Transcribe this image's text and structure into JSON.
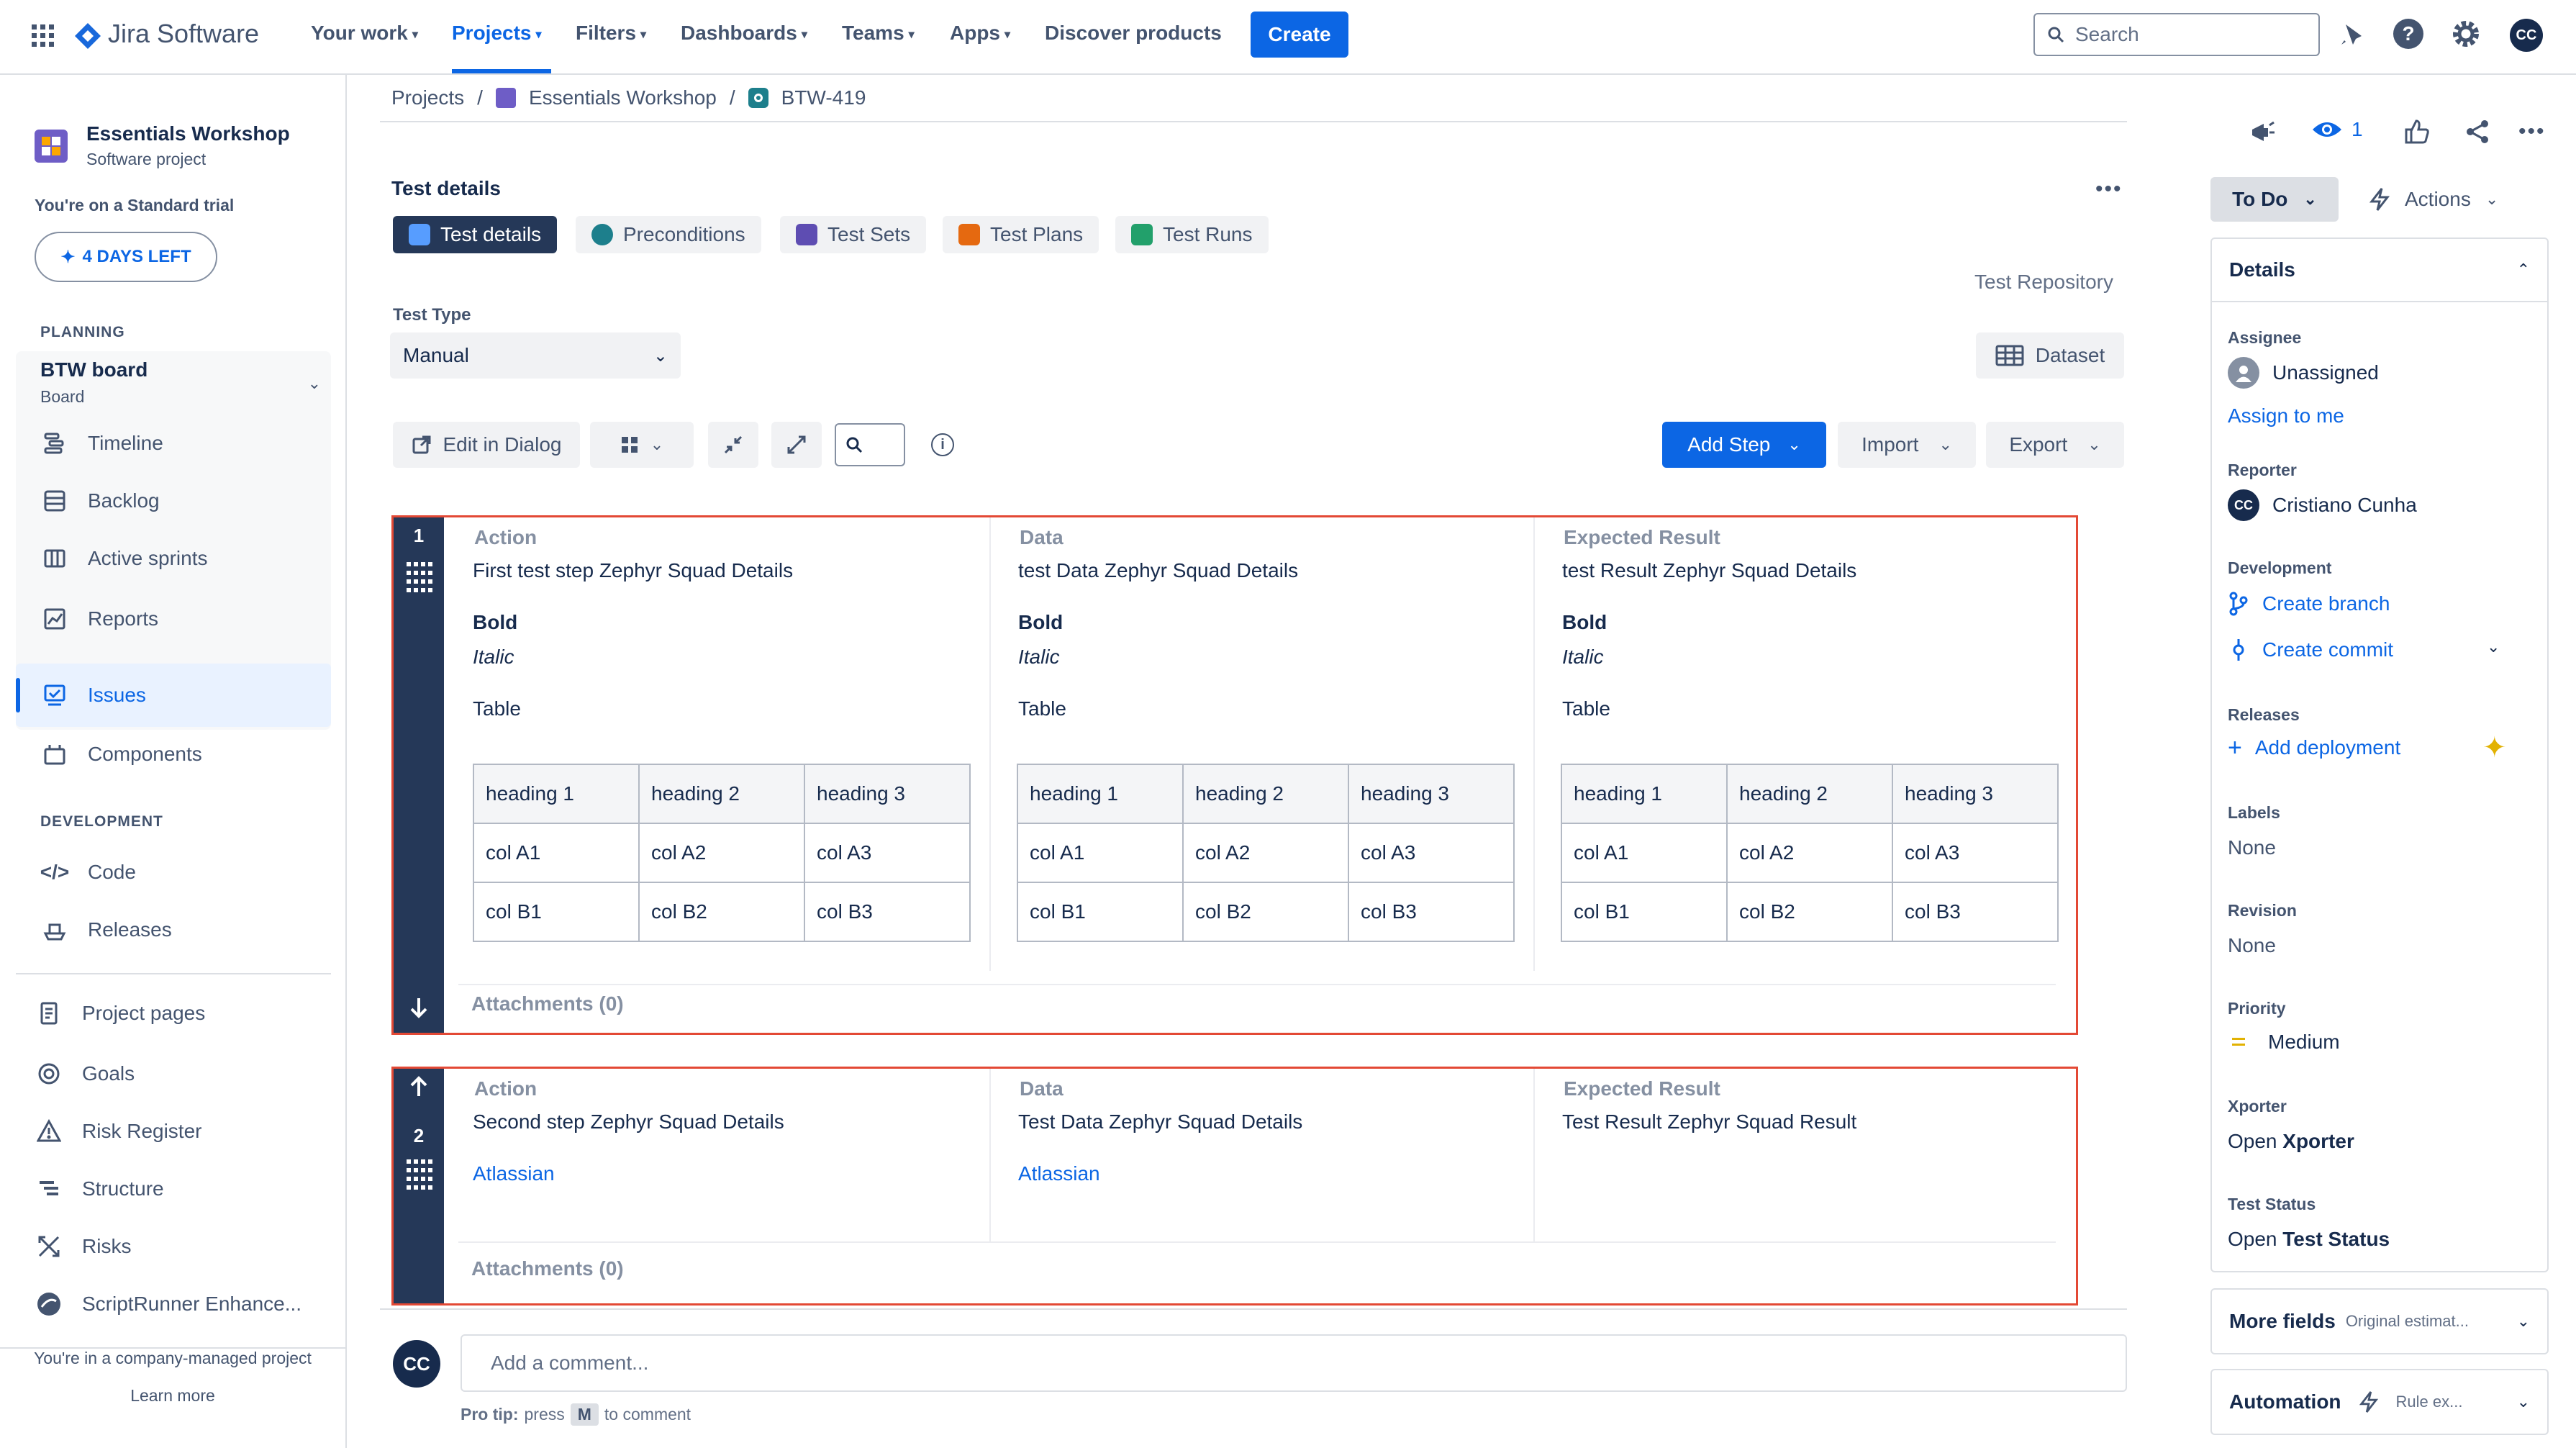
{
  "topnav": {
    "product": "Jira Software",
    "items": [
      "Your work",
      "Projects",
      "Filters",
      "Dashboards",
      "Teams",
      "Apps",
      "Discover products"
    ],
    "create": "Create",
    "search_placeholder": "Search",
    "avatar": "CC"
  },
  "sidebar": {
    "project_name": "Essentials Workshop",
    "project_type": "Software project",
    "trial_text": "You're on a Standard trial",
    "trial_button": "4 DAYS LEFT",
    "planning_header": "PLANNING",
    "board_name": "BTW board",
    "board_sub": "Board",
    "planning_items": [
      "Timeline",
      "Backlog",
      "Active sprints",
      "Reports"
    ],
    "issues": "Issues",
    "components": "Components",
    "development_header": "DEVELOPMENT",
    "dev_items": [
      "Code",
      "Releases"
    ],
    "other_items": [
      "Project pages",
      "Goals",
      "Risk Register",
      "Structure",
      "Risks",
      "ScriptRunner Enhance..."
    ],
    "footer_text": "You're in a company-managed project",
    "learn_more": "Learn more"
  },
  "breadcrumb": {
    "projects": "Projects",
    "project": "Essentials Workshop",
    "issue": "BTW-419"
  },
  "main": {
    "section_title": "Test details",
    "tabs": [
      "Test details",
      "Preconditions",
      "Test Sets",
      "Test Plans",
      "Test Runs"
    ],
    "test_repository": "Test Repository",
    "test_type_label": "Test Type",
    "test_type_value": "Manual",
    "dataset": "Dataset",
    "edit_in_dialog": "Edit in Dialog",
    "add_step": "Add Step",
    "import": "Import",
    "export": "Export"
  },
  "steps": [
    {
      "number": "1",
      "headers": [
        "Action",
        "Data",
        "Expected Result"
      ],
      "texts": [
        "First test step Zephyr Squad Details",
        "test Data Zephyr Squad Details",
        "test Result Zephyr Squad Details"
      ],
      "bold": "Bold",
      "italic": "Italic",
      "table_label": "Table",
      "table_rows": [
        [
          "heading 1",
          "heading 2",
          "heading 3"
        ],
        [
          "col A1",
          "col A2",
          "col A3"
        ],
        [
          "col B1",
          "col B2",
          "col B3"
        ]
      ],
      "attachments": "Attachments (0)"
    },
    {
      "number": "2",
      "headers": [
        "Action",
        "Data",
        "Expected Result"
      ],
      "texts": [
        "Second step Zephyr Squad Details",
        "Test Data Zephyr Squad Details",
        "Test Result Zephyr Squad Result"
      ],
      "links": [
        "Atlassian",
        "Atlassian"
      ],
      "attachments": "Attachments (0)"
    }
  ],
  "comment": {
    "avatar": "CC",
    "placeholder": "Add a comment...",
    "tip_prefix": "Pro tip:",
    "tip_press": "press",
    "tip_key": "M",
    "tip_suffix": "to comment"
  },
  "right_panel": {
    "watch_count": "1",
    "status": "To Do",
    "actions": "Actions",
    "details_title": "Details",
    "assignee_label": "Assignee",
    "assignee": "Unassigned",
    "assign_to_me": "Assign to me",
    "reporter_label": "Reporter",
    "reporter_avatar": "CC",
    "reporter": "Cristiano Cunha",
    "development_label": "Development",
    "create_branch": "Create branch",
    "create_commit": "Create commit",
    "releases_label": "Releases",
    "add_deployment": "Add deployment",
    "labels_label": "Labels",
    "labels_value": "None",
    "revision_label": "Revision",
    "revision_value": "None",
    "priority_label": "Priority",
    "priority_value": "Medium",
    "xporter_label": "Xporter",
    "xporter_prefix": "Open",
    "xporter_strong": "Xporter",
    "test_status_label": "Test Status",
    "test_status_prefix": "Open",
    "test_status_strong": "Test Status",
    "more_fields": "More fields",
    "more_fields_sub": "Original estimat...",
    "automation": "Automation",
    "automation_sub": "Rule ex..."
  },
  "colors": {
    "brand_blue": "#0c66e4",
    "step_border": "#e34935",
    "step_rail": "#253858",
    "priority_medium": "#e2b203"
  }
}
